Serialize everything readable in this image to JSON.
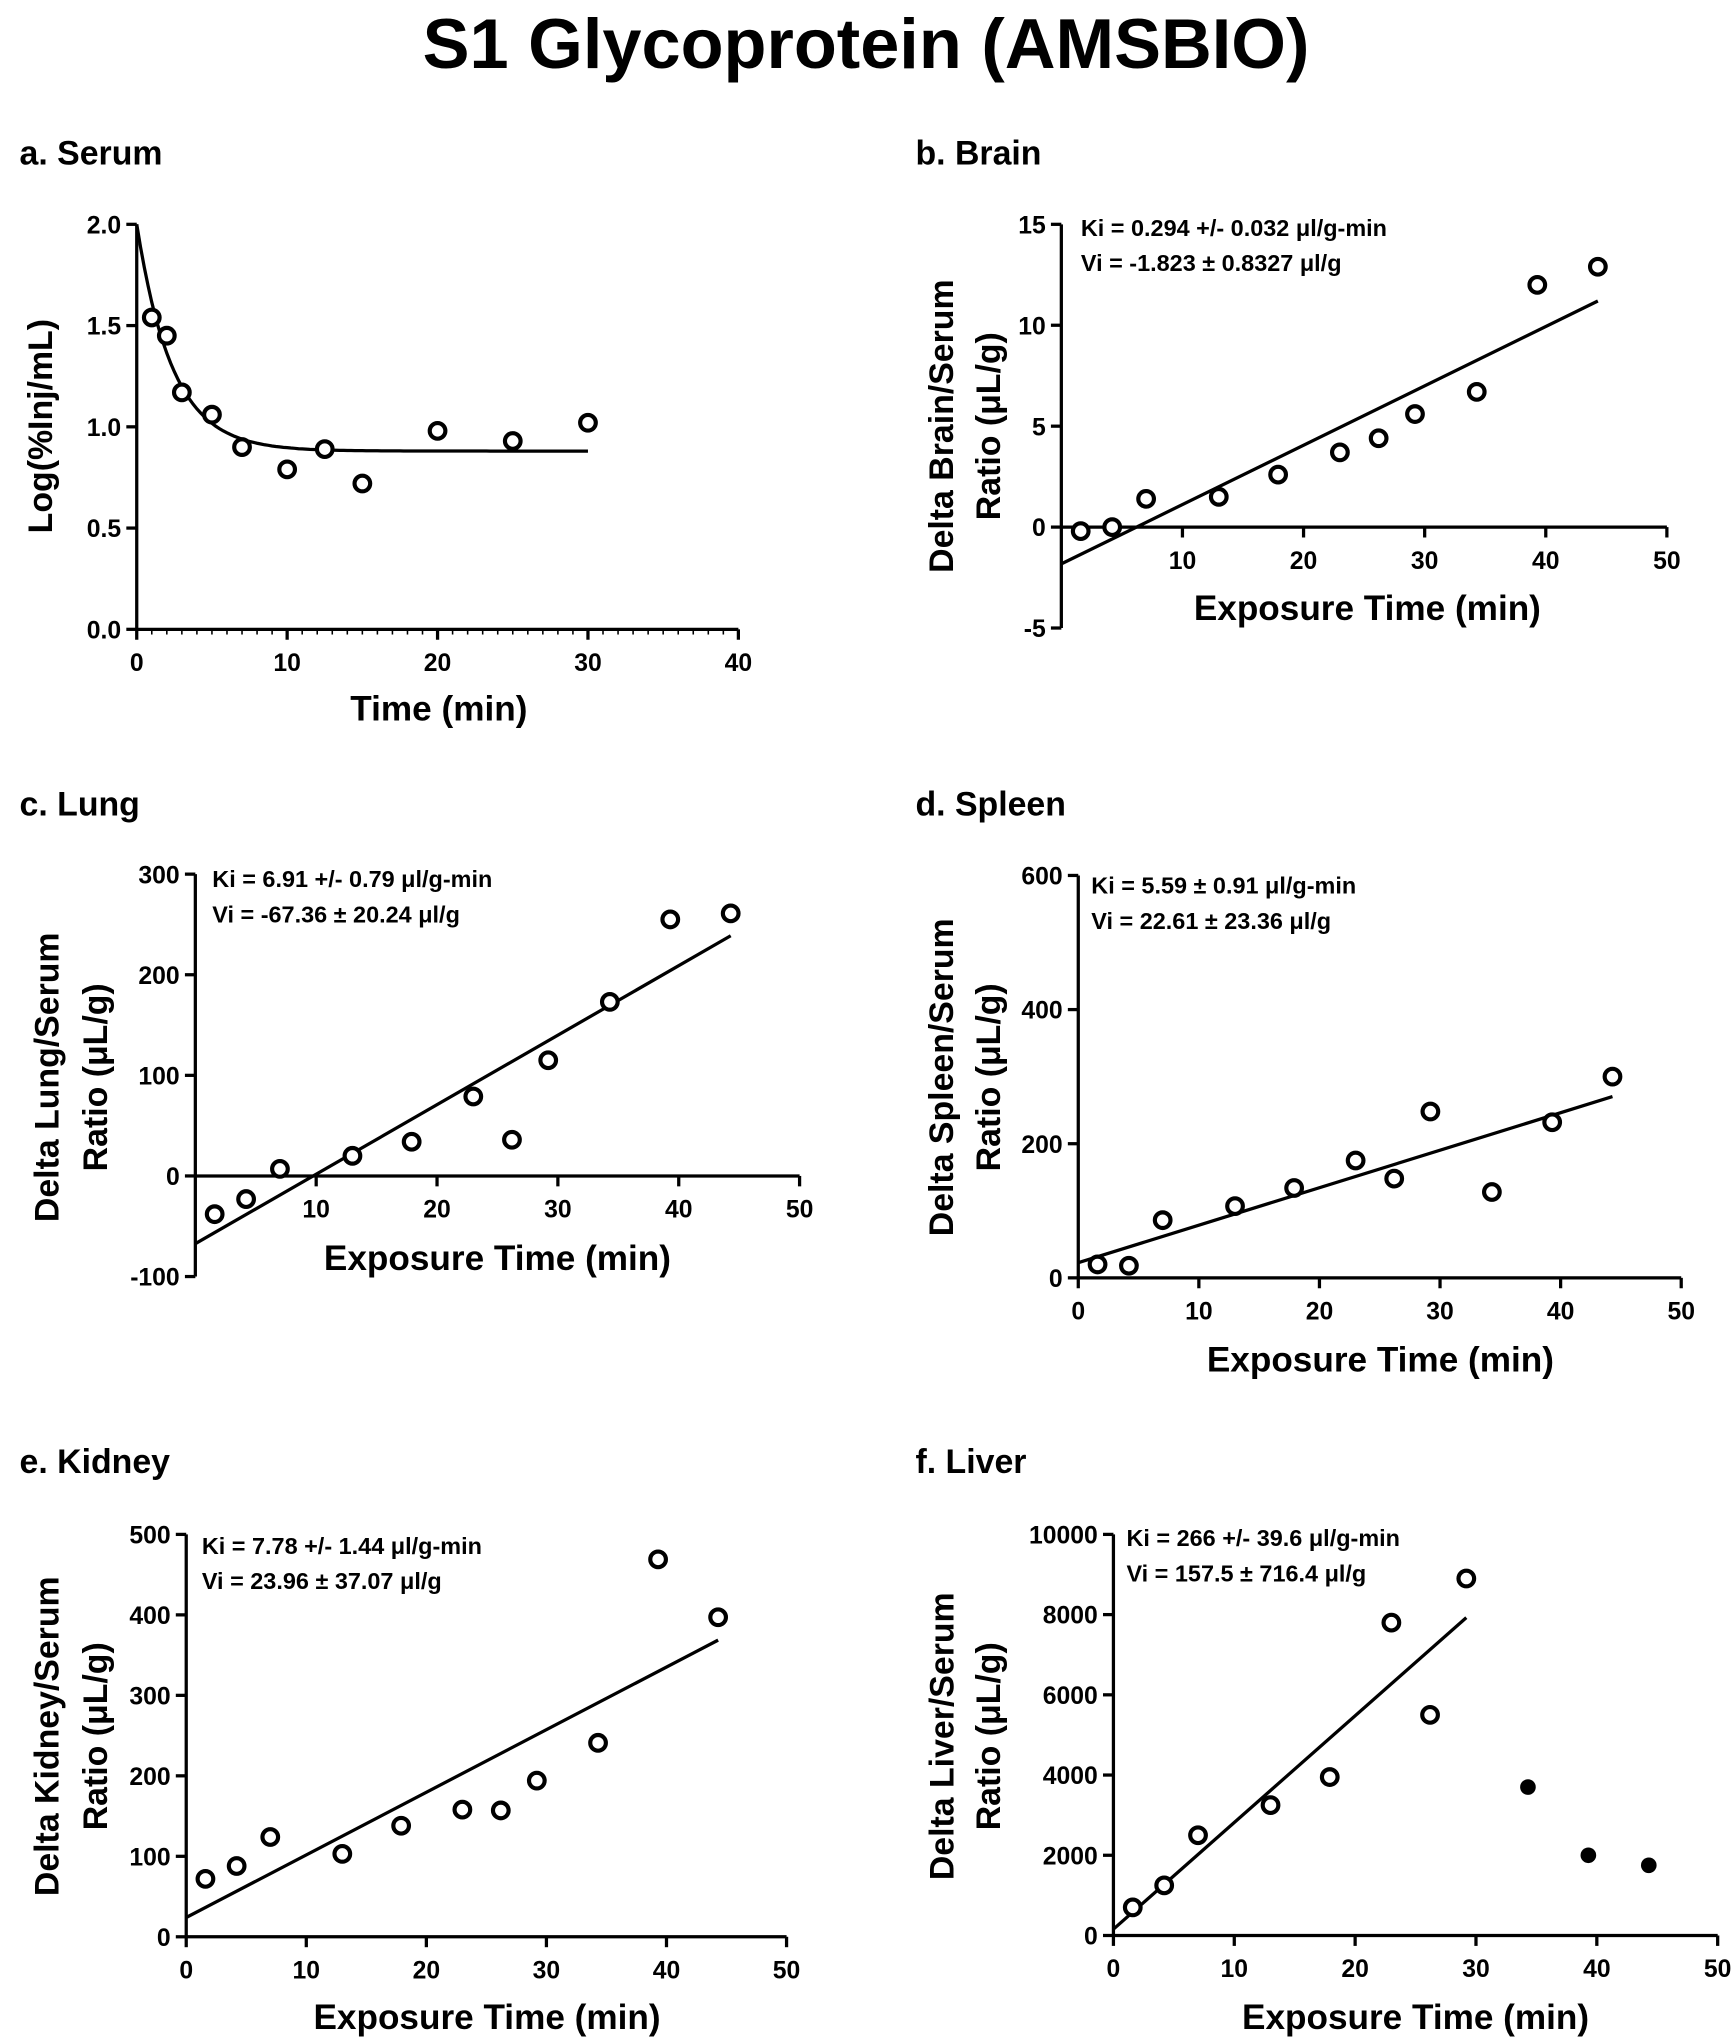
{
  "title": "S1 Glycoprotein (AMSBIO)",
  "chart_data": [
    {
      "type": "scatter",
      "panel": "a. Serum",
      "xlabel": "Time (min)",
      "ylabel": [
        "Log(%Inj/mL)"
      ],
      "xlim": [
        0,
        40
      ],
      "ylim": [
        0,
        2
      ],
      "xticks": [
        "0",
        "10",
        "20",
        "30",
        "40"
      ],
      "xtick_values": [
        0,
        10,
        20,
        30,
        40
      ],
      "yticks": [
        "0.0",
        "0.5",
        "1.0",
        "1.5",
        "2.0"
      ],
      "ytick_values": [
        0,
        0.5,
        1,
        1.5,
        2
      ],
      "points": {
        "x": [
          1,
          2,
          3,
          5,
          7,
          10,
          12.5,
          15,
          20,
          25,
          30
        ],
        "y": [
          1.54,
          1.45,
          1.17,
          1.06,
          0.9,
          0.79,
          0.89,
          0.72,
          0.98,
          0.93,
          1.02
        ]
      },
      "fit": {
        "type": "exponential_decay",
        "y0": 2.0,
        "plateau": 0.88,
        "k": 0.42,
        "xrange": [
          0,
          30
        ]
      },
      "annotations": []
    },
    {
      "type": "scatter",
      "panel": "b. Brain",
      "xlabel": "Exposure Time (min)",
      "ylabel": [
        "Delta Brain/Serum",
        "Ratio (μL/g)"
      ],
      "xlim": [
        0,
        50
      ],
      "ylim": [
        -5,
        15
      ],
      "xticks": [
        "10",
        "20",
        "30",
        "40",
        "50"
      ],
      "xtick_values": [
        10,
        20,
        30,
        40,
        50
      ],
      "yticks": [
        "-5",
        "0",
        "5",
        "10",
        "15"
      ],
      "ytick_values": [
        -5,
        0,
        5,
        10,
        15
      ],
      "points": {
        "x": [
          1.6,
          4.2,
          7,
          13,
          17.9,
          23,
          26.2,
          29.2,
          34.3,
          39.3,
          44.3
        ],
        "y": [
          -0.2,
          0,
          1.4,
          1.5,
          2.6,
          3.7,
          4.4,
          5.6,
          6.7,
          12.0,
          12.9
        ]
      },
      "fit": {
        "type": "linear",
        "slope": 0.294,
        "intercept": -1.823,
        "xrange": [
          0,
          44.3
        ]
      },
      "annotations": [
        "Ki = 0.294 +/- 0.032 μl/g-min",
        "Vi = -1.823 ± 0.8327 μl/g"
      ]
    },
    {
      "type": "scatter",
      "panel": "c. Lung",
      "xlabel": "Exposure Time (min)",
      "ylabel": [
        "Delta Lung/Serum",
        "Ratio (μL/g)"
      ],
      "xlim": [
        0,
        50
      ],
      "ylim": [
        -100,
        300
      ],
      "xticks": [
        "10",
        "20",
        "30",
        "40",
        "50"
      ],
      "xtick_values": [
        10,
        20,
        30,
        40,
        50
      ],
      "yticks": [
        "-100",
        "0",
        "100",
        "200",
        "300"
      ],
      "ytick_values": [
        -100,
        0,
        100,
        200,
        300
      ],
      "points": {
        "x": [
          1.6,
          4.2,
          7,
          13,
          17.9,
          23,
          26.2,
          29.2,
          34.3,
          39.3,
          44.3
        ],
        "y": [
          -38,
          -23,
          7,
          20,
          34,
          79,
          36,
          115,
          173,
          255,
          261
        ]
      },
      "fit": {
        "type": "linear",
        "slope": 6.91,
        "intercept": -67.36,
        "xrange": [
          0,
          44.3
        ]
      },
      "annotations": [
        "Ki = 6.91 +/- 0.79 μl/g-min",
        "Vi = -67.36 ± 20.24 μl/g"
      ]
    },
    {
      "type": "scatter",
      "panel": "d. Spleen",
      "xlabel": "Exposure Time (min)",
      "ylabel": [
        "Delta Spleen/Serum",
        "Ratio (μL/g)"
      ],
      "xlim": [
        0,
        50
      ],
      "ylim": [
        0,
        600
      ],
      "xticks": [
        "0",
        "10",
        "20",
        "30",
        "40",
        "50"
      ],
      "xtick_values": [
        0,
        10,
        20,
        30,
        40,
        50
      ],
      "yticks": [
        "0",
        "200",
        "400",
        "600"
      ],
      "ytick_values": [
        0,
        200,
        400,
        600
      ],
      "points": {
        "x": [
          1.6,
          4.2,
          7,
          13,
          17.9,
          23,
          26.2,
          29.2,
          34.3,
          39.3,
          44.3
        ],
        "y": [
          20,
          18,
          86,
          107,
          134,
          175,
          148,
          248,
          128,
          232,
          300
        ]
      },
      "fit": {
        "type": "linear",
        "slope": 5.59,
        "intercept": 22.61,
        "xrange": [
          0,
          44.3
        ]
      },
      "annotations": [
        "Ki = 5.59 ± 0.91 μl/g-min",
        "Vi = 22.61 ± 23.36 μl/g"
      ]
    },
    {
      "type": "scatter",
      "panel": "e. Kidney",
      "xlabel": "Exposure Time (min)",
      "ylabel": [
        "Delta Kidney/Serum",
        "Ratio (μL/g)"
      ],
      "xlim": [
        0,
        50
      ],
      "ylim": [
        0,
        500
      ],
      "xticks": [
        "0",
        "10",
        "20",
        "30",
        "40",
        "50"
      ],
      "xtick_values": [
        0,
        10,
        20,
        30,
        40,
        50
      ],
      "yticks": [
        "0",
        "100",
        "200",
        "300",
        "400",
        "500"
      ],
      "ytick_values": [
        0,
        100,
        200,
        300,
        400,
        500
      ],
      "points": {
        "x": [
          1.6,
          4.2,
          7,
          13,
          17.9,
          23,
          26.2,
          29.2,
          34.3,
          39.3,
          44.3
        ],
        "y": [
          72,
          88,
          124,
          103,
          138,
          158,
          157,
          194,
          241,
          469,
          397
        ]
      },
      "fit": {
        "type": "linear",
        "slope": 7.78,
        "intercept": 23.96,
        "xrange": [
          0,
          44.3
        ]
      },
      "annotations": [
        "Ki = 7.78 +/- 1.44 μl/g-min",
        "Vi = 23.96 ± 37.07 μl/g"
      ]
    },
    {
      "type": "scatter",
      "panel": "f. Liver",
      "xlabel": "Exposure Time (min)",
      "ylabel": [
        "Delta Liver/Serum",
        "Ratio (μL/g)"
      ],
      "xlim": [
        0,
        50
      ],
      "ylim": [
        0,
        10000
      ],
      "xticks": [
        "0",
        "10",
        "20",
        "30",
        "40",
        "50"
      ],
      "xtick_values": [
        0,
        10,
        20,
        30,
        40,
        50
      ],
      "yticks": [
        "0",
        "2000",
        "4000",
        "6000",
        "8000",
        "10000"
      ],
      "ytick_values": [
        0,
        2000,
        4000,
        6000,
        8000,
        10000
      ],
      "points": {
        "x": [
          1.6,
          4.2,
          7,
          13,
          17.9,
          23,
          26.2,
          29.2
        ],
        "y": [
          700,
          1250,
          2500,
          3250,
          3950,
          7800,
          5500,
          8900
        ]
      },
      "excluded_points": {
        "x": [
          34.3,
          39.3,
          44.3
        ],
        "y": [
          3700,
          2000,
          1750
        ]
      },
      "fit": {
        "type": "linear",
        "slope": 266,
        "intercept": 157.5,
        "xrange": [
          0,
          29.2
        ]
      },
      "annotations": [
        "Ki = 266 +/- 39.6 μl/g-min",
        "Vi = 157.5 ± 716.4 μl/g"
      ]
    }
  ]
}
